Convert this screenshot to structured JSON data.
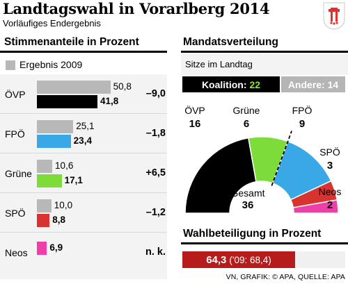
{
  "header": {
    "title": "Landtagswahl in Vorarlberg 2014",
    "subtitle": "Vorläufiges Endergebnis"
  },
  "left": {
    "section_title": "Stimmenanteile in Prozent",
    "legend_label": "Ergebnis 2009"
  },
  "right": {
    "section_title": "Mandatsverteilung",
    "sitze_label": "Sitze im Landtag",
    "koalition_label": "Koalition:",
    "koalition_value": "22",
    "andere_label": "Andere: 14",
    "gesamt_label": "Gesamt",
    "gesamt_value": "36"
  },
  "turnout": {
    "section_title": "Wahlbeteiligung in Prozent",
    "value": "64,3",
    "previous": "('09: 68,4)",
    "fraction": 0.643
  },
  "source": "VN, GRAFIK: © APA, QUELLE: APA",
  "colors": {
    "prev": "#b8b8b8",
    "ovp": "#000000",
    "fpo": "#3aa7e6",
    "grune": "#7ddc3a",
    "spo": "#d8332e",
    "neos": "#ee3fa8",
    "turnout": "#b71c1c"
  },
  "chart_data": [
    {
      "type": "bar",
      "title": "Stimmenanteile in Prozent",
      "categories": [
        "ÖVP",
        "FPÖ",
        "Grüne",
        "SPÖ",
        "Neos"
      ],
      "series": [
        {
          "name": "Ergebnis 2009",
          "values": [
            50.8,
            25.1,
            10.6,
            10.0,
            null
          ],
          "labels": [
            "50,8",
            "25,1",
            "10,6",
            "10,0",
            ""
          ]
        },
        {
          "name": "",
          "values": [
            41.8,
            23.4,
            17.1,
            8.8,
            6.9
          ],
          "labels": [
            "41,8",
            "23,4",
            "17,1",
            "8,8",
            "6,9"
          ]
        }
      ],
      "differences": [
        "–9,0",
        "–1,8",
        "+6,5",
        "–1,2",
        "n. k."
      ],
      "xlim": [
        0,
        60
      ]
    },
    {
      "type": "pie",
      "title": "Mandatsverteilung",
      "categories": [
        "ÖVP",
        "Grüne",
        "FPÖ",
        "SPÖ",
        "Neos"
      ],
      "values": [
        16,
        6,
        9,
        3,
        2
      ],
      "total": 36
    }
  ]
}
